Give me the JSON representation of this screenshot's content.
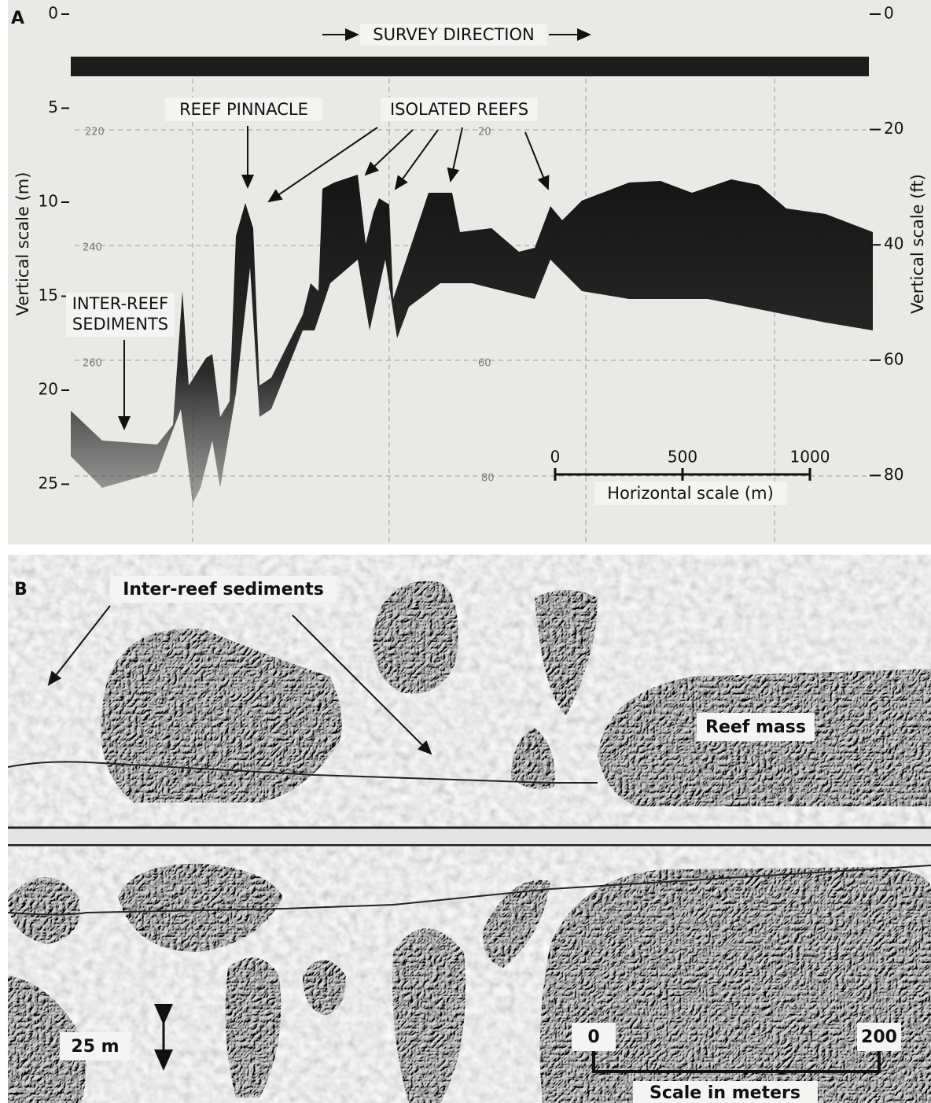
{
  "panel_a": {
    "label": "A",
    "left_axis": {
      "title": "Vertical scale (m)",
      "ticks": [
        0,
        5,
        10,
        15,
        20,
        25
      ]
    },
    "right_axis": {
      "title": "Vertical scale (ft)",
      "ticks": [
        0,
        20,
        40,
        60,
        80
      ]
    },
    "record_labels": [
      "220",
      "240",
      "260",
      "20",
      "60",
      "80"
    ],
    "survey_direction": "SURVEY DIRECTION",
    "reef_pinnacle": "REEF PINNACLE",
    "isolated_reefs": "ISOLATED REEFS",
    "inter_reef_sediments": [
      "INTER-REEF",
      "SEDIMENTS"
    ],
    "horizontal_scale": {
      "title": "Horizontal scale (m)",
      "ticks": [
        0,
        500,
        1000
      ]
    }
  },
  "panel_b": {
    "label": "B",
    "inter_reef_sediments": "Inter-reef sediments",
    "reef_mass": "Reef mass",
    "vertical_scale": "25 m",
    "scale": {
      "title": "Scale in meters",
      "ticks": [
        0,
        200
      ]
    }
  }
}
